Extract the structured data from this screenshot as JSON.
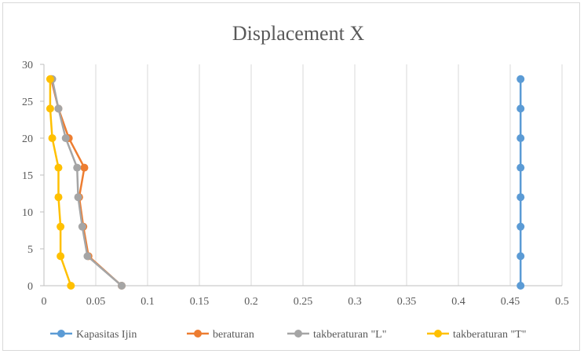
{
  "chart_data": {
    "type": "scatter",
    "title": "Displacement  X",
    "xlabel": "",
    "ylabel": "",
    "xlim": [
      0,
      0.5
    ],
    "ylim": [
      0,
      30
    ],
    "x_ticks": [
      "0",
      "0.05",
      "0.1",
      "0.15",
      "0.2",
      "0.25",
      "0.3",
      "0.35",
      "0.4",
      "0.45",
      "0.5"
    ],
    "y_ticks": [
      "0",
      "5",
      "10",
      "15",
      "20",
      "25",
      "30"
    ],
    "grid": "vertical",
    "legend_position": "bottom",
    "series": [
      {
        "name": "Kapasitas Ijin",
        "color": "#5b9bd5",
        "points": [
          [
            0.46,
            0
          ],
          [
            0.46,
            4
          ],
          [
            0.46,
            8
          ],
          [
            0.46,
            12
          ],
          [
            0.46,
            16
          ],
          [
            0.46,
            20
          ],
          [
            0.46,
            24
          ],
          [
            0.46,
            28
          ]
        ]
      },
      {
        "name": "beraturan",
        "color": "#ed7d31",
        "points": [
          [
            0.075,
            0
          ],
          [
            0.043,
            4
          ],
          [
            0.038,
            8
          ],
          [
            0.034,
            12
          ],
          [
            0.039,
            16
          ],
          [
            0.024,
            20
          ],
          [
            0.014,
            24
          ],
          [
            0.007,
            28
          ]
        ]
      },
      {
        "name": "takberaturan \"L\"",
        "color": "#a5a5a5",
        "points": [
          [
            0.075,
            0
          ],
          [
            0.042,
            4
          ],
          [
            0.037,
            8
          ],
          [
            0.033,
            12
          ],
          [
            0.032,
            16
          ],
          [
            0.021,
            20
          ],
          [
            0.014,
            24
          ],
          [
            0.008,
            28
          ]
        ]
      },
      {
        "name": "takberaturan \"T\"",
        "color": "#ffc000",
        "points": [
          [
            0.026,
            0
          ],
          [
            0.016,
            4
          ],
          [
            0.016,
            8
          ],
          [
            0.014,
            12
          ],
          [
            0.014,
            16
          ],
          [
            0.008,
            20
          ],
          [
            0.006,
            24
          ],
          [
            0.006,
            28
          ]
        ]
      }
    ]
  }
}
